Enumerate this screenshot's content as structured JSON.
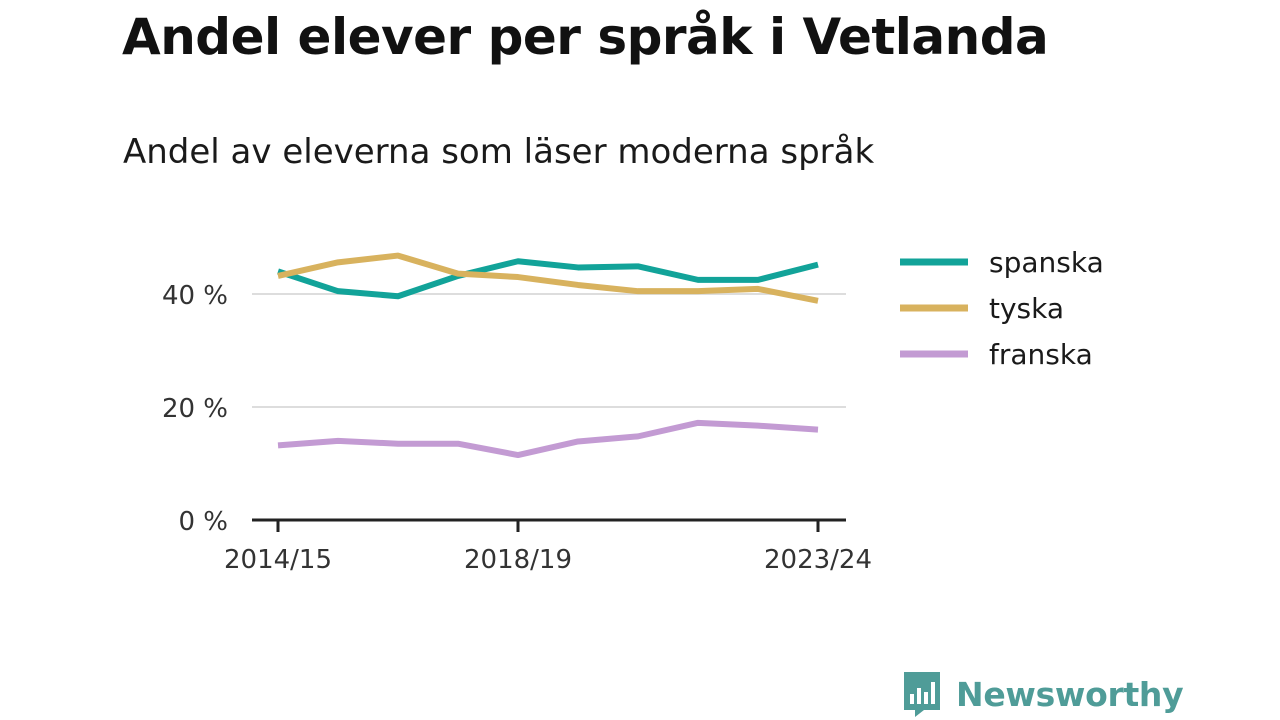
{
  "page": {
    "title": "Andel elever per språk i Vetlanda",
    "subtitle": "Andel av eleverna som läser moderna språk"
  },
  "chart_data": {
    "type": "line",
    "x": [
      "2014/15",
      "2015/16",
      "2016/17",
      "2017/18",
      "2018/19",
      "2019/20",
      "2020/21",
      "2021/22",
      "2022/23",
      "2023/24"
    ],
    "x_tick_labels": [
      "2014/15",
      "2018/19",
      "2023/24"
    ],
    "x_tick_positions": [
      "2014/15",
      "2018/19",
      "2023/24"
    ],
    "y_tick_values": [
      0,
      20,
      40
    ],
    "y_tick_labels": [
      "0 %",
      "20 %",
      "40 %"
    ],
    "ylim": [
      0,
      48
    ],
    "ylabel": "",
    "xlabel": "",
    "grid": true,
    "legend_position": "right",
    "series": [
      {
        "name": "spanska",
        "color": "#12a399",
        "values": [
          44.0,
          40.5,
          39.6,
          43.2,
          45.8,
          44.7,
          44.9,
          42.5,
          42.5,
          45.2
        ]
      },
      {
        "name": "tyska",
        "color": "#d8b25e",
        "values": [
          43.2,
          45.6,
          46.8,
          43.6,
          43.0,
          41.6,
          40.5,
          40.5,
          40.9,
          38.8
        ]
      },
      {
        "name": "franska",
        "color": "#c39bd3",
        "values": [
          13.2,
          14.0,
          13.5,
          13.5,
          11.5,
          13.9,
          14.8,
          17.2,
          16.7,
          16.0
        ]
      }
    ]
  },
  "brand": {
    "name": "Newsworthy",
    "color": "#4f9c98",
    "icon": "bar-chart-speech-bubble-icon"
  }
}
